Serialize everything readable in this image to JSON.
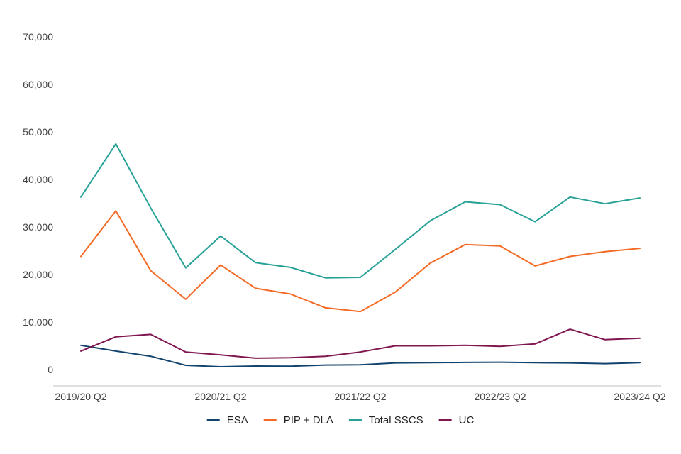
{
  "chart_data": {
    "type": "line",
    "title": "",
    "xlabel": "",
    "ylabel": "",
    "ylim": [
      0,
      70000
    ],
    "y_ticks": [
      0,
      10000,
      20000,
      30000,
      40000,
      50000,
      60000,
      70000
    ],
    "y_tick_labels": [
      "0",
      "10,000",
      "20,000",
      "30,000",
      "40,000",
      "50,000",
      "60,000",
      "70,000"
    ],
    "x_tick_labels": [
      "2019/20 Q2",
      "2020/21 Q2",
      "2021/22 Q2",
      "2022/23 Q2",
      "2023/24 Q2"
    ],
    "x_tick_indices": [
      0,
      4,
      8,
      12,
      16
    ],
    "categories": [
      "2019/20 Q2",
      "2019/20 Q3",
      "2019/20 Q4",
      "2020/21 Q1",
      "2020/21 Q2",
      "2020/21 Q3",
      "2020/21 Q4",
      "2021/22 Q1",
      "2021/22 Q2",
      "2021/22 Q3",
      "2021/22 Q4",
      "2022/23 Q1",
      "2022/23 Q2",
      "2022/23 Q3",
      "2022/23 Q4",
      "2023/24 Q1",
      "2023/24 Q2"
    ],
    "legend_position": "bottom",
    "series": [
      {
        "name": "ESA",
        "color": "#12436d",
        "values": [
          5100,
          3900,
          2800,
          900,
          600,
          750,
          700,
          950,
          1000,
          1400,
          1450,
          1500,
          1550,
          1450,
          1400,
          1250,
          1450
        ]
      },
      {
        "name": "PIP + DLA",
        "color": "#f46a25",
        "values": [
          23800,
          33400,
          20800,
          14800,
          22000,
          17100,
          15900,
          13000,
          12200,
          16300,
          22400,
          26300,
          26000,
          21800,
          23800,
          24800,
          25500
        ]
      },
      {
        "name": "Total SSCS",
        "color": "#28a197",
        "values": [
          36300,
          47500,
          34000,
          21400,
          28100,
          22500,
          21500,
          19300,
          19400,
          25300,
          31300,
          35300,
          34700,
          31100,
          36300,
          34900,
          36100
        ]
      },
      {
        "name": "UC",
        "color": "#801650",
        "values": [
          3900,
          6900,
          7400,
          3700,
          3100,
          2400,
          2500,
          2800,
          3700,
          5000,
          5000,
          5100,
          4900,
          5400,
          8500,
          6300,
          6600
        ]
      }
    ]
  }
}
